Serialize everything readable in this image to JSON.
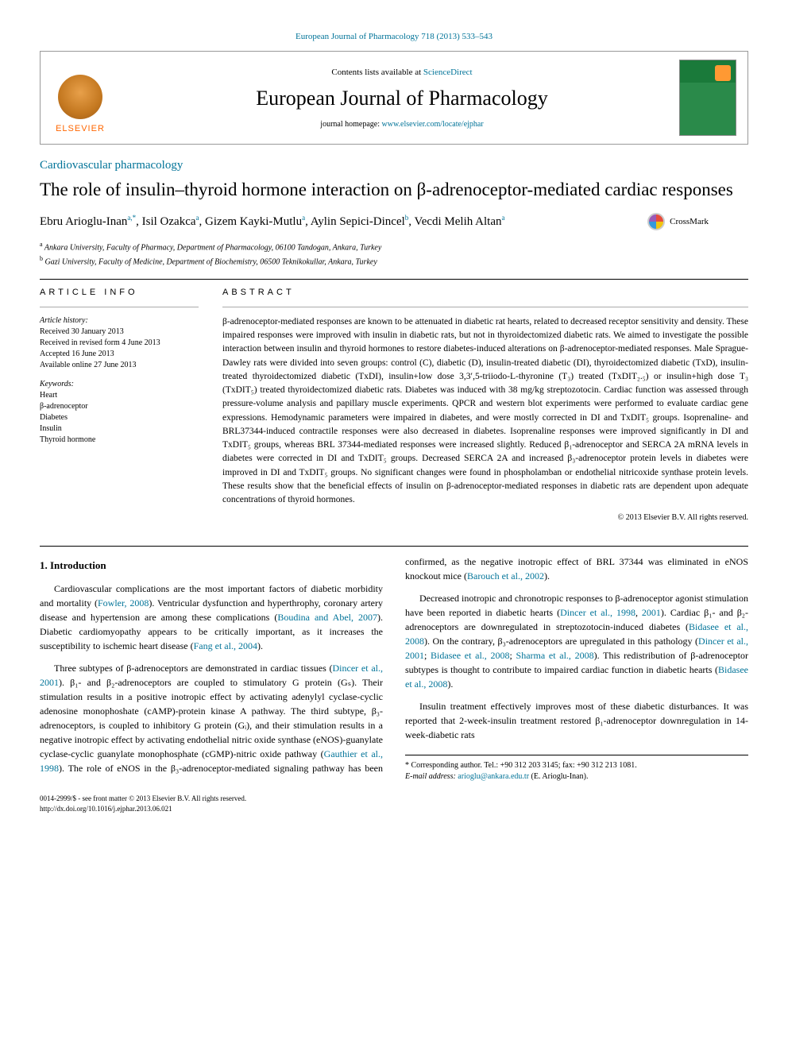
{
  "top_link": {
    "prefix": "",
    "text": "European Journal of Pharmacology 718 (2013) 533–543"
  },
  "header": {
    "contents_prefix": "Contents lists available at ",
    "contents_link": "ScienceDirect",
    "journal": "European Journal of Pharmacology",
    "homepage_prefix": "journal homepage: ",
    "homepage_link": "www.elsevier.com/locate/ejphar",
    "elsevier": "ELSEVIER"
  },
  "category": "Cardiovascular pharmacology",
  "title": "The role of insulin–thyroid hormone interaction on β-adrenoceptor-mediated cardiac responses",
  "crossmark": "CrossMark",
  "authors": {
    "a1": {
      "name": "Ebru Arioglu-Inan",
      "aff": "a,",
      "cor": "*"
    },
    "a2": {
      "name": "Isil Ozakca",
      "aff": "a"
    },
    "a3": {
      "name": "Gizem Kayki-Mutlu",
      "aff": "a"
    },
    "a4": {
      "name": "Aylin Sepici-Dincel",
      "aff": "b"
    },
    "a5": {
      "name": "Vecdi Melih Altan",
      "aff": "a"
    }
  },
  "affiliations": {
    "a": "Ankara University, Faculty of Pharmacy, Department of Pharmacology, 06100 Tandogan, Ankara, Turkey",
    "b": "Gazi University, Faculty of Medicine, Department of Biochemistry, 06500 Teknikokullar, Ankara, Turkey"
  },
  "info": {
    "heading": "ARTICLE INFO",
    "history_label": "Article history:",
    "received": "Received 30 January 2013",
    "revised": "Received in revised form 4 June 2013",
    "accepted": "Accepted 16 June 2013",
    "online": "Available online 27 June 2013",
    "keywords_label": "Keywords:",
    "kw1": "Heart",
    "kw2": "β-adrenoceptor",
    "kw3": "Diabetes",
    "kw4": "Insulin",
    "kw5": "Thyroid hormone"
  },
  "abstract": {
    "heading": "ABSTRACT",
    "text": "β-adrenoceptor-mediated responses are known to be attenuated in diabetic rat hearts, related to decreased receptor sensitivity and density. These impaired responses were improved with insulin in diabetic rats, but not in thyroidectomized diabetic rats. We aimed to investigate the possible interaction between insulin and thyroid hormones to restore diabetes-induced alterations on β-adrenoceptor-mediated responses. Male Sprague-Dawley rats were divided into seven groups: control (C), diabetic (D), insulin-treated diabetic (DI), thyroidectomized diabetic (TxD), insulin-treated thyroidectomized diabetic (TxDI), insulin+low dose 3,3′,5-triiodo-L-thyronine (T₃) treated (TxDIT₂.₅) or insulin+high dose T₃ (TxDIT₅) treated thyroidectomized diabetic rats. Diabetes was induced with 38 mg/kg streptozotocin. Cardiac function was assessed through pressure-volume analysis and papillary muscle experiments. QPCR and western blot experiments were performed to evaluate cardiac gene expressions. Hemodynamic parameters were impaired in diabetes, and were mostly corrected in DI and TxDIT₅ groups. Isoprenaline- and BRL37344-induced contractile responses were also decreased in diabetes. Isoprenaline responses were improved significantly in DI and TxDIT₅ groups, whereas BRL 37344-mediated responses were increased slightly. Reduced β₁-adrenoceptor and SERCA 2A mRNA levels in diabetes were corrected in DI and TxDIT₅ groups. Decreased SERCA 2A and increased β₃-adrenoceptor protein levels in diabetes were improved in DI and TxDIT₅ groups. No significant changes were found in phospholamban or endothelial nitricoxide synthase protein levels. These results show that the beneficial effects of insulin on β-adrenoceptor-mediated responses in diabetic rats are dependent upon adequate concentrations of thyroid hormones.",
    "copyright": "© 2013 Elsevier B.V. All rights reserved."
  },
  "body": {
    "h1": "1.  Introduction",
    "p1_a": "Cardiovascular complications are the most important factors of diabetic morbidity and mortality (",
    "p1_c1": "Fowler, 2008",
    "p1_b": "). Ventricular dysfunction and hyperthrophy, coronary artery disease and hypertension are among these complications (",
    "p1_c2": "Boudina and Abel, 2007",
    "p1_c": "). Diabetic cardiomyopathy appears to be critically important, as it increases the susceptibility to ischemic heart disease (",
    "p1_c3": "Fang et al., 2004",
    "p1_d": ").",
    "p2_a": "Three subtypes of β-adrenoceptors are demonstrated in cardiac tissues (",
    "p2_c1": "Dincer et al., 2001",
    "p2_b": "). β₁- and β₂-adrenoceptors are coupled to stimulatory G protein (Gₛ). Their stimulation results in a positive inotropic effect by activating adenylyl cyclase-cyclic adenosine monophoshate (cAMP)-protein kinase A pathway. The third subtype, β₃-adrenoceptors, is coupled to inhibitory G protein (Gᵢ), and ",
    "p3_a": "their stimulation results in a negative inotropic effect by activating endothelial nitric oxide synthase (eNOS)-guanylate cyclase-cyclic guanylate monophosphate (cGMP)-nitric oxide pathway (",
    "p3_c1": "Gauthier et al., 1998",
    "p3_b": "). The role of eNOS in the β₃-adrenoceptor-mediated signaling pathway has been confirmed, as the negative inotropic effect of BRL 37344 was eliminated in eNOS knockout mice (",
    "p3_c2": "Barouch et al., 2002",
    "p3_c": ").",
    "p4_a": "Decreased inotropic and chronotropic responses to β-adrenoceptor agonist stimulation have been reported in diabetic hearts (",
    "p4_c1": "Dincer et al., 1998",
    "p4_c1b": ", ",
    "p4_c1c": "2001",
    "p4_b": "). Cardiac β₁- and β₂-adrenoceptors are downregulated in streptozotocin-induced diabetes (",
    "p4_c2": "Bidasee et al., 2008",
    "p4_c": "). On the contrary, β₃-adrenoceptors are upregulated in this pathology (",
    "p4_c3": "Dincer et al., 2001",
    "p4_d": "; ",
    "p4_c4": "Bidasee et al., 2008",
    "p4_e": "; ",
    "p4_c5": "Sharma et al., 2008",
    "p4_f": "). This redistribution of β-adrenoceptor subtypes is thought to contribute to impaired cardiac function in diabetic hearts (",
    "p4_c6": "Bidasee et al., 2008",
    "p4_g": ").",
    "p5": "Insulin treatment effectively improves most of these diabetic disturbances. It was reported that 2-week-insulin treatment restored β₁-adrenoceptor downregulation in 14-week-diabetic rats"
  },
  "footnote": {
    "corr": "* Corresponding author. Tel.: +90 312 203 3145; fax: +90 312 213 1081.",
    "email_label": "E-mail address: ",
    "email": "arioglu@ankara.edu.tr",
    "email_suffix": " (E. Arioglu-Inan)."
  },
  "bottom": {
    "issn": "0014-2999/$ - see front matter © 2013 Elsevier B.V. All rights reserved.",
    "doi": "http://dx.doi.org/10.1016/j.ejphar.2013.06.021"
  },
  "colors": {
    "link": "#007398",
    "text": "#000000",
    "elsevier_orange": "#ff6600"
  }
}
